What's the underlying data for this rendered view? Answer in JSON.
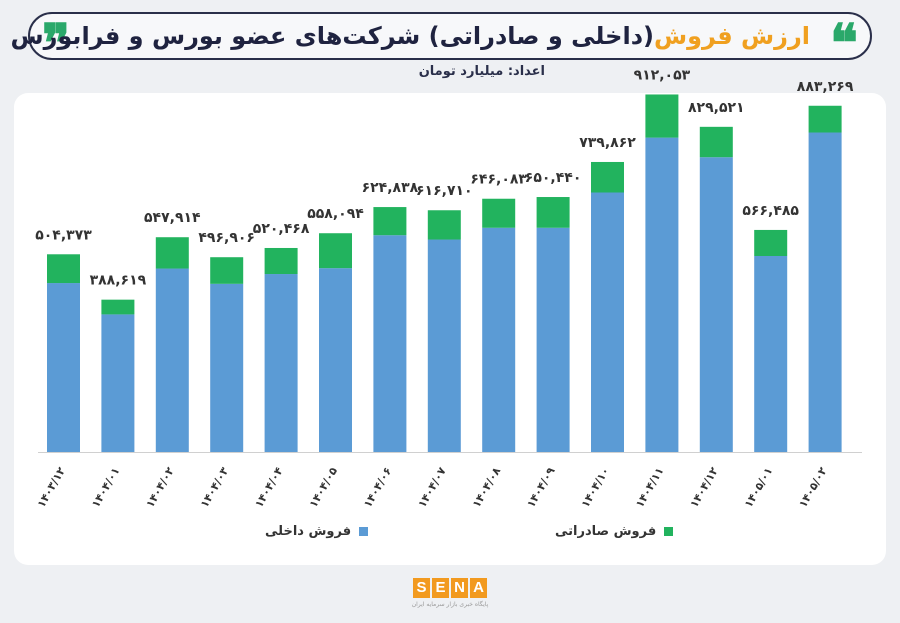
{
  "header": {
    "quote_open": "❞",
    "quote_close": "❝",
    "title_accent": "ارزش فروش",
    "title_rest": "(داخلی و صادراتی) شرکت‌های عضو بورس و فرابورس",
    "subtitle": "اعداد: میلیارد تومان"
  },
  "colors": {
    "domestic": "#5b9bd5",
    "export": "#22b35e",
    "accent": "#f0a020",
    "title": "#1f2340"
  },
  "chart_data": {
    "type": "bar",
    "stacked": true,
    "categories": [
      "۱۴۰۳/۱۲",
      "۱۴۰۴/۰۱",
      "۱۴۰۴/۰۲",
      "۱۴۰۴/۰۳",
      "۱۴۰۴/۰۴",
      "۱۴۰۴/۰۵",
      "۱۴۰۴/۰۶",
      "۱۴۰۴/۰۷",
      "۱۴۰۴/۰۸",
      "۱۴۰۴/۰۹",
      "۱۴۰۴/۱۰",
      "۱۴۰۴/۱۱",
      "۱۴۰۴/۱۲",
      "۱۴۰۵/۰۱",
      "۱۴۰۵/۰۲"
    ],
    "totals": [
      504373,
      388619,
      547914,
      496906,
      520468,
      558094,
      624838,
      616710,
      646083,
      650440,
      739862,
      912053,
      829521,
      566485,
      883269
    ],
    "total_labels": [
      "۵۰۴,۳۷۳",
      "۳۸۸,۶۱۹",
      "۵۴۷,۹۱۴",
      "۴۹۶,۹۰۶",
      "۵۲۰,۴۶۸",
      "۵۵۸,۰۹۴",
      "۶۲۴,۸۳۸",
      "۶۱۶,۷۱۰",
      "۶۴۶,۰۸۳",
      "۶۵۰,۴۴۰",
      "۷۳۹,۸۶۲",
      "۹۱۲,۰۵۳",
      "۸۲۹,۵۲۱",
      "۵۶۶,۴۸۵",
      "۸۸۳,۲۶۹"
    ],
    "series": [
      {
        "name": "فروش داخلی",
        "values": [
          431000,
          351000,
          468000,
          429000,
          454000,
          469000,
          553000,
          542000,
          572000,
          572000,
          662000,
          802000,
          752000,
          500000,
          815000
        ]
      },
      {
        "name": "فروش صادراتی",
        "values": [
          73373,
          37619,
          79914,
          67906,
          66468,
          89094,
          71838,
          74710,
          74083,
          78440,
          77862,
          110053,
          77521,
          66485,
          68269
        ]
      }
    ],
    "ylim": [
      0,
      1000000
    ],
    "grid": false,
    "legend_position": "bottom"
  },
  "logo": {
    "letters": [
      "S",
      "E",
      "N",
      "A"
    ],
    "tagline": "پایگاه خبری بازار سرمایه ایران"
  }
}
